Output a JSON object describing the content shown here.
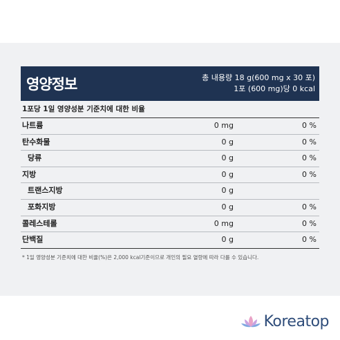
{
  "nutrition": {
    "title": "영양정보",
    "total_content": "총 내용량 18 g(600 mg x 30 포)",
    "per_serving": "1포 (600 mg)당 0 kcal",
    "subheader": "1포당 1일 영양성분 기준치에 대한 비율",
    "rows": [
      {
        "name": "나트륨",
        "amount": "0 mg",
        "pct": "0 %"
      },
      {
        "name": "탄수화물",
        "amount": "0 g",
        "pct": "0 %"
      },
      {
        "name": "당류",
        "amount": "0 g",
        "pct": "0 %"
      },
      {
        "name": "지방",
        "amount": "0 g",
        "pct": "0 %"
      },
      {
        "name": "트랜스지방",
        "amount": "0 g",
        "pct": ""
      },
      {
        "name": "포화지방",
        "amount": "0 g",
        "pct": "0 %"
      },
      {
        "name": "콜레스테롤",
        "amount": "0 mg",
        "pct": "0 %"
      },
      {
        "name": "단백질",
        "amount": "0 g",
        "pct": "0 %"
      }
    ],
    "footnote": "* 1일 영양성분 기준치에 대한 비율(%)은 2,000 kcal기준이므로 개인의 필요 열량에 따라 다를 수 있습니다."
  },
  "brand": {
    "name": "Koreatop",
    "logo_icon": "lotus-icon",
    "colors": {
      "header": "#1f3352",
      "brand_text": "#2f4d7a",
      "lotus_pink": "#e9a3c6",
      "lotus_blue": "#7fa8e0"
    }
  }
}
